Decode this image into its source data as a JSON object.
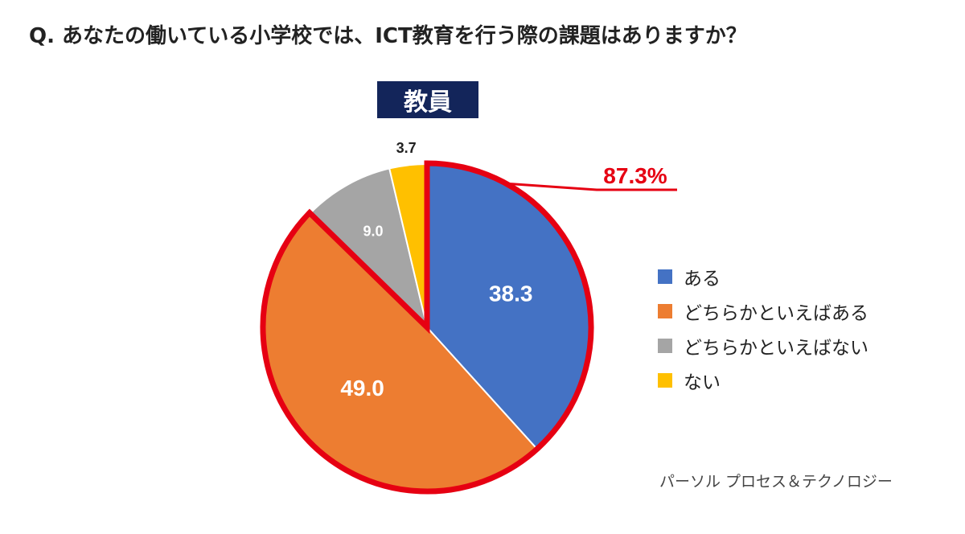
{
  "question": "Q. あなたの働いている小学校では、ICT教育を行う際の課題はありますか？",
  "badge": "教員",
  "callout": "87.3%",
  "source": "パーソル プロセス＆テクノロジー",
  "chart_data": {
    "type": "pie",
    "title": "教員",
    "categories": [
      "ある",
      "どちらかといえばある",
      "どちらかといえばない",
      "ない"
    ],
    "values": [
      38.3,
      49.0,
      9.0,
      3.7
    ],
    "data_labels": [
      "38.3",
      "49.0",
      "9.0",
      "3.7"
    ],
    "colors": [
      "#4472c4",
      "#ed7d31",
      "#a5a5a5",
      "#ffc000"
    ],
    "highlight": {
      "categories": [
        "ある",
        "どちらかといえばある"
      ],
      "label": "87.3%",
      "color": "#e60012"
    },
    "legend": "right"
  }
}
